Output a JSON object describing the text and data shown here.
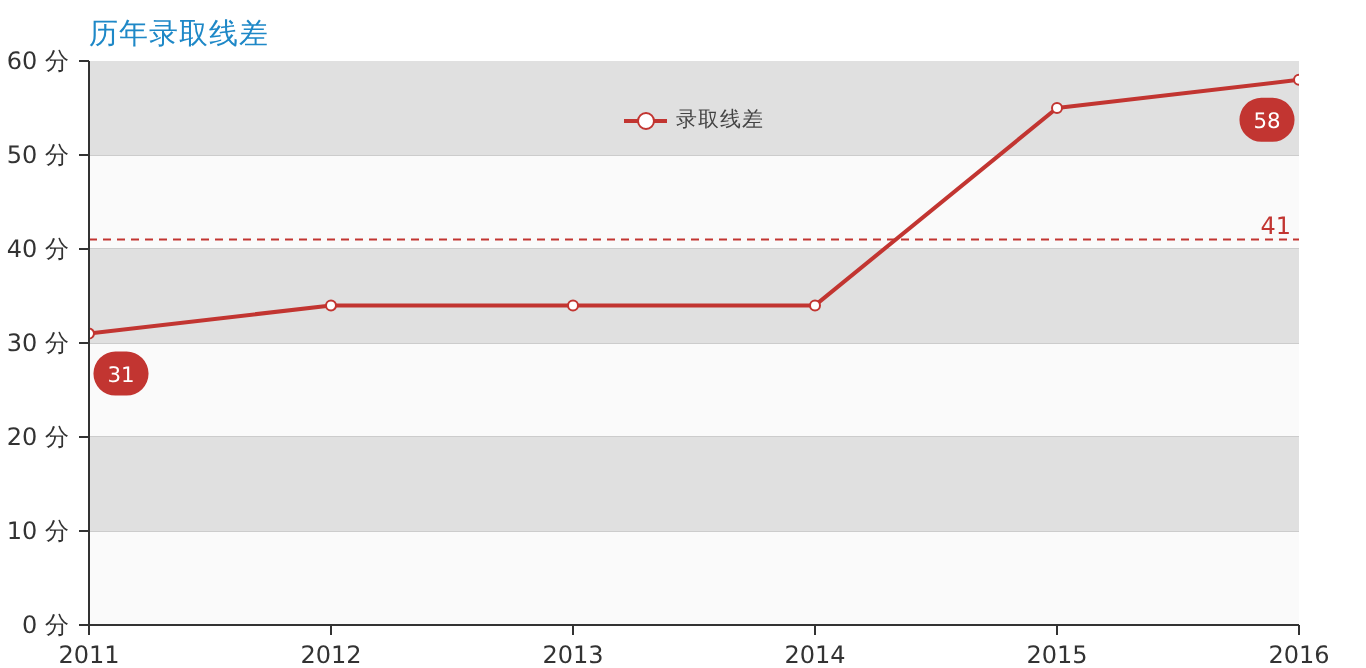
{
  "chart_data": {
    "type": "line",
    "title": "历年录取线差",
    "x": [
      2011,
      2012,
      2013,
      2014,
      2015,
      2016
    ],
    "series": [
      {
        "name": "录取线差",
        "color": "#c23531",
        "values": [
          31,
          34,
          34,
          34,
          55,
          58
        ]
      }
    ],
    "xlim": [
      2011,
      2016
    ],
    "xticks": [
      2011,
      2012,
      2013,
      2014,
      2015,
      2016
    ],
    "ylim": [
      0,
      60
    ],
    "yticks": [
      {
        "value": 0,
        "label": "0 分"
      },
      {
        "value": 10,
        "label": "10 分"
      },
      {
        "value": 20,
        "label": "20 分"
      },
      {
        "value": 30,
        "label": "30 分"
      },
      {
        "value": 40,
        "label": "40 分"
      },
      {
        "value": 50,
        "label": "50 分"
      },
      {
        "value": 60,
        "label": "60 分"
      }
    ],
    "ref_lines": [
      {
        "axis": "y",
        "value": 41,
        "label": "41",
        "color": "#c23531",
        "line_style": "dashed"
      }
    ],
    "bands": [
      {
        "axis": "y",
        "from": 50,
        "to": 60,
        "color": "#e0e0e0"
      },
      {
        "axis": "y",
        "from": 30,
        "to": 40,
        "color": "#e0e0e0"
      },
      {
        "axis": "y",
        "from": 10,
        "to": 20,
        "color": "#e0e0e0"
      }
    ],
    "annotations": [
      {
        "text": "31",
        "x": 2011,
        "y": 31
      },
      {
        "text": "58",
        "x": 2016,
        "y": 58
      }
    ],
    "grid": "y",
    "legend": "top",
    "marker": "circle",
    "line_style": "solid"
  }
}
